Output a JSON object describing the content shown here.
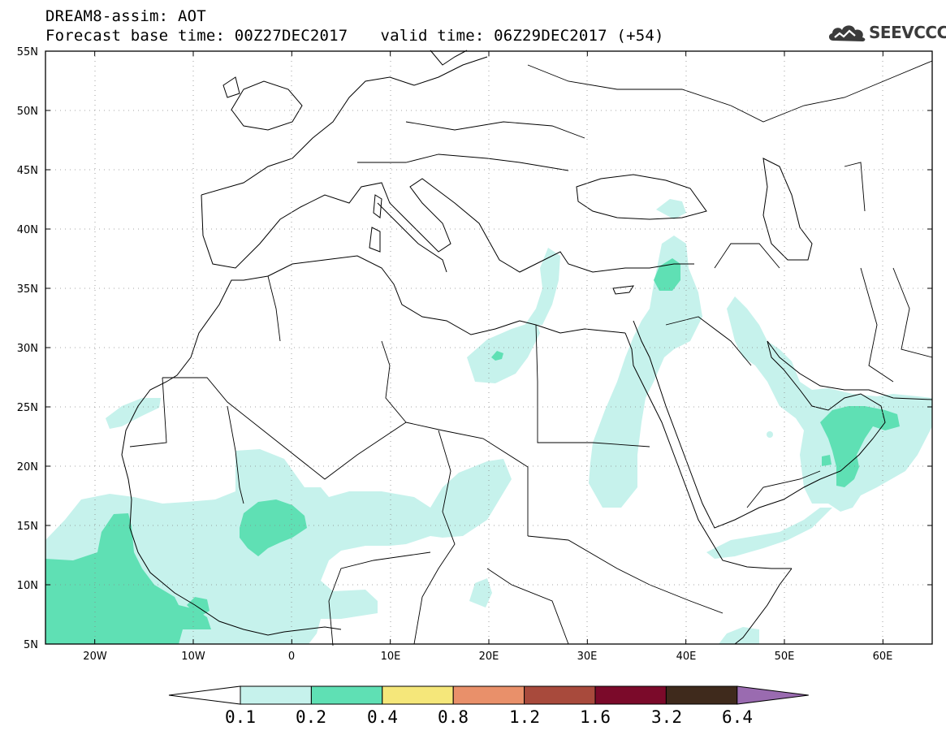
{
  "header": {
    "title": "DREAM8-assim: AOT",
    "base_time": "Forecast base time: 00Z27DEC2017",
    "valid_time": "valid time: 06Z29DEC2017 (+54)"
  },
  "logo": {
    "text": "SEEVCCC",
    "icon": "cloud-icon"
  },
  "map": {
    "lon_range": [
      -25,
      65
    ],
    "lat_range": [
      5,
      55
    ],
    "lat_labels": [
      "55N",
      "50N",
      "45N",
      "40N",
      "35N",
      "30N",
      "25N",
      "20N",
      "15N",
      "10N",
      "5N"
    ],
    "lon_labels": [
      "20W",
      "10W",
      "0",
      "10E",
      "20E",
      "30E",
      "40E",
      "50E",
      "60E"
    ],
    "grid": "dotted"
  },
  "colorbar": {
    "levels": [
      "0.1",
      "0.2",
      "0.4",
      "0.8",
      "1.2",
      "1.6",
      "3.2",
      "6.4"
    ],
    "colors": {
      "under": "#ffffff",
      "c1": "#c6f2ec",
      "c2": "#5fe0b4",
      "c3": "#f5e77a",
      "c4": "#e9906a",
      "c5": "#a84a3c",
      "c6": "#7b0a2a",
      "c7": "#3f2a1c",
      "over": "#9a6bb0"
    }
  }
}
